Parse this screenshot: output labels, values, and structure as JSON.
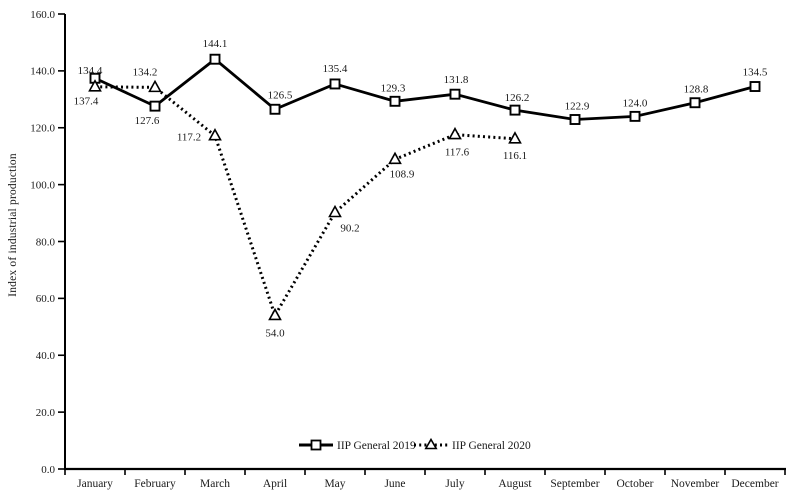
{
  "figure": {
    "background": "#ffffff",
    "text_color": "#1a1a1a",
    "axis_color": "#000000"
  },
  "chart_data": {
    "type": "line",
    "title": "",
    "xlabel": "",
    "ylabel": "Index of industrial production",
    "categories": [
      "January",
      "February",
      "March",
      "April",
      "May",
      "June",
      "July",
      "August",
      "September",
      "October",
      "November",
      "December"
    ],
    "ylim": [
      0,
      160
    ],
    "yticks": [
      "0.0",
      "20.0",
      "40.0",
      "60.0",
      "80.0",
      "100.0",
      "120.0",
      "140.0",
      "160.0"
    ],
    "grid": false,
    "legend_position": "bottom-center-inside",
    "series": [
      {
        "name": "IIP General 2019",
        "marker": "square",
        "line_style": "solid",
        "color": "#000000",
        "values": [
          137.4,
          127.6,
          144.1,
          126.5,
          135.4,
          129.3,
          131.8,
          126.2,
          122.9,
          124.0,
          128.8,
          134.5
        ],
        "label_offsets": [
          [
            -9,
            22
          ],
          [
            -8,
            14
          ],
          [
            0,
            -16
          ],
          [
            5,
            -15
          ],
          [
            0,
            -16
          ],
          [
            -2,
            -14
          ],
          [
            1,
            -15
          ],
          [
            2,
            -13
          ],
          [
            2,
            -14
          ],
          [
            0,
            -14
          ],
          [
            1,
            -14
          ],
          [
            0,
            -15
          ]
        ]
      },
      {
        "name": "IIP General 2020",
        "marker": "triangle",
        "line_style": "dotted",
        "color": "#000000",
        "values": [
          134.4,
          134.2,
          117.2,
          54.0,
          90.2,
          108.9,
          117.6,
          116.1
        ],
        "label_offsets": [
          [
            -5,
            -17
          ],
          [
            -10,
            -16
          ],
          [
            -26,
            1
          ],
          [
            0,
            17
          ],
          [
            15,
            15
          ],
          [
            7,
            14
          ],
          [
            2,
            17
          ],
          [
            0,
            16
          ]
        ]
      }
    ]
  }
}
